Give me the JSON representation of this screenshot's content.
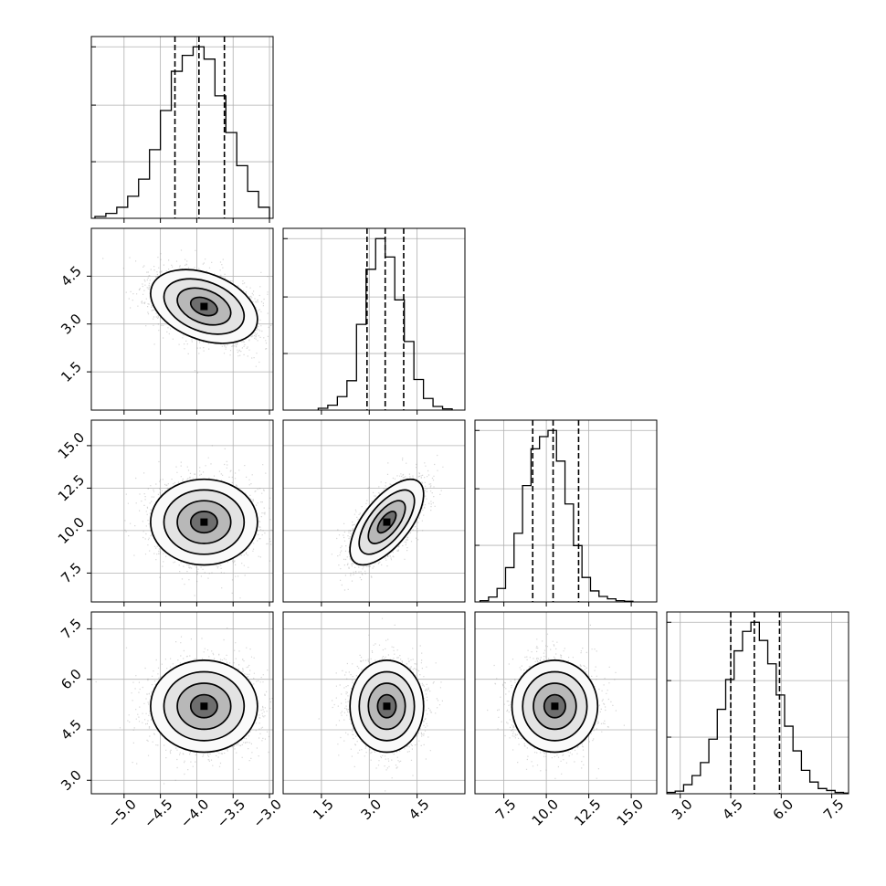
{
  "chart_data": {
    "type": "corner",
    "title": "",
    "grid": true,
    "parameters": [
      {
        "index": 0,
        "mean": -3.9,
        "std": 0.35,
        "range": [
          -5.45,
          -2.95
        ],
        "ticks": [
          -5.0,
          -4.5,
          -4.0,
          -3.5,
          -3.0
        ],
        "tick_labels": [
          "−5.0",
          "−4.5",
          "−4.0",
          "−3.5",
          "−3.0"
        ],
        "quantiles": [
          -4.3,
          -3.97,
          -3.62
        ],
        "histogram": {
          "bin_edges": [
            -5.4,
            -5.25,
            -5.1,
            -4.95,
            -4.8,
            -4.65,
            -4.5,
            -4.35,
            -4.2,
            -4.05,
            -3.9,
            -3.75,
            -3.6,
            -3.45,
            -3.3,
            -3.15,
            -3.0
          ],
          "counts": [
            15,
            40,
            90,
            180,
            320,
            560,
            880,
            1200,
            1330,
            1400,
            1300,
            1000,
            700,
            430,
            220,
            90
          ]
        }
      },
      {
        "index": 1,
        "mean": 3.55,
        "std": 0.55,
        "range": [
          0.3,
          6.0
        ],
        "ticks": [
          1.5,
          3.0,
          4.5
        ],
        "tick_labels": [
          "1.5",
          "3.0",
          "4.5"
        ],
        "quantiles": [
          2.93,
          3.5,
          4.08
        ],
        "histogram": {
          "bin_edges": [
            1.4,
            1.7,
            2.0,
            2.3,
            2.6,
            2.9,
            3.2,
            3.5,
            3.8,
            4.1,
            4.4,
            4.7,
            5.0,
            5.3,
            5.6
          ],
          "counts": [
            15,
            40,
            110,
            240,
            700,
            1150,
            1400,
            1250,
            900,
            560,
            250,
            95,
            30,
            10
          ]
        }
      },
      {
        "index": 2,
        "mean": 10.5,
        "std": 1.2,
        "range": [
          5.8,
          16.5
        ],
        "ticks": [
          7.5,
          10.0,
          12.5,
          15.0
        ],
        "tick_labels": [
          "7.5",
          "10.0",
          "12.5",
          "15.0"
        ],
        "quantiles": [
          9.2,
          10.4,
          11.9
        ],
        "histogram": {
          "bin_edges": [
            6.1,
            6.6,
            7.1,
            7.6,
            8.1,
            8.6,
            9.1,
            9.6,
            10.1,
            10.6,
            11.1,
            11.6,
            12.1,
            12.6,
            13.1,
            13.6,
            14.1,
            14.6,
            15.1
          ],
          "counts": [
            10,
            40,
            110,
            280,
            560,
            950,
            1250,
            1350,
            1400,
            1150,
            800,
            460,
            200,
            90,
            45,
            25,
            10,
            5
          ]
        }
      },
      {
        "index": 3,
        "mean": 5.2,
        "std": 0.65,
        "range": [
          2.6,
          8.0
        ],
        "ticks": [
          3.0,
          4.5,
          6.0,
          7.5
        ],
        "tick_labels": [
          "3.0",
          "4.5",
          "6.0",
          "7.5"
        ],
        "quantiles": [
          4.5,
          5.2,
          5.95
        ],
        "histogram": {
          "bin_edges": [
            2.6,
            2.85,
            3.1,
            3.35,
            3.6,
            3.85,
            4.1,
            4.35,
            4.6,
            4.85,
            5.1,
            5.35,
            5.6,
            5.85,
            6.1,
            6.35,
            6.6,
            6.85,
            7.1,
            7.35,
            7.6,
            7.85,
            8.0
          ],
          "counts": [
            10,
            20,
            70,
            140,
            240,
            420,
            650,
            880,
            1100,
            1250,
            1320,
            1180,
            1000,
            760,
            520,
            330,
            180,
            90,
            40,
            25,
            10,
            5
          ]
        }
      }
    ],
    "pairs": [
      {
        "x": 0,
        "y": 1,
        "correlation": -0.35
      },
      {
        "x": 0,
        "y": 2,
        "correlation": 0.0
      },
      {
        "x": 1,
        "y": 2,
        "correlation": 0.65
      },
      {
        "x": 0,
        "y": 3,
        "correlation": 0.0
      },
      {
        "x": 1,
        "y": 3,
        "correlation": 0.0
      },
      {
        "x": 2,
        "y": 3,
        "correlation": 0.0
      }
    ],
    "contour_levels_sigma": [
      0.5,
      1.0,
      1.5,
      2.0
    ],
    "scatter_color": "#8a8a8a",
    "density_color": "#000000"
  }
}
